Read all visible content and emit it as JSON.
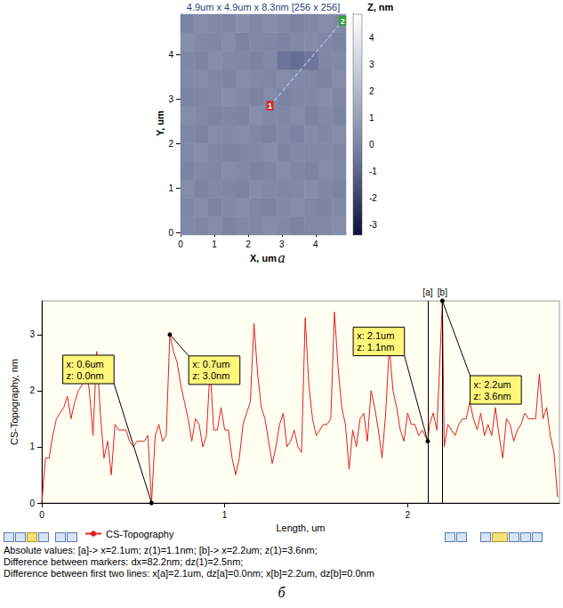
{
  "chart_data": [
    {
      "type": "heatmap",
      "title": "4.9um x 4.9um x 8.3nm [256 x 256]",
      "x_label": "X, um",
      "y_label": "Y, um",
      "colorbar_label": "Z, nm",
      "caption": "а",
      "xlim": [
        0,
        4.9
      ],
      "ylim": [
        0,
        4.9
      ],
      "xticks": [
        0,
        1,
        2,
        3,
        4
      ],
      "yticks": [
        0,
        1,
        2,
        3,
        4
      ],
      "zlim": [
        -3.4,
        4.9
      ],
      "zticks": [
        -3,
        -2,
        -1,
        0,
        1,
        2,
        3,
        4
      ],
      "cells": [
        [
          0.2,
          0.1,
          0.3,
          0.0,
          0.2,
          0.1,
          0.3,
          0.2,
          0.0,
          0.1,
          0.2,
          0.3
        ],
        [
          0.1,
          0.3,
          0.0,
          0.2,
          0.4,
          0.1,
          0.0,
          0.2,
          0.3,
          0.1,
          0.0,
          0.2
        ],
        [
          0.3,
          0.0,
          0.2,
          0.1,
          0.0,
          0.3,
          0.2,
          0.1,
          0.2,
          0.4,
          0.1,
          0.0
        ],
        [
          0.0,
          0.2,
          0.1,
          0.3,
          0.2,
          0.0,
          0.1,
          0.3,
          0.1,
          0.0,
          0.3,
          0.2
        ],
        [
          0.2,
          0.4,
          0.1,
          0.0,
          0.1,
          0.2,
          0.4,
          0.0,
          0.2,
          0.1,
          0.2,
          0.1
        ],
        [
          0.1,
          0.0,
          0.3,
          0.2,
          0.3,
          0.1,
          0.0,
          0.2,
          0.0,
          0.3,
          0.1,
          0.3
        ],
        [
          0.3,
          0.2,
          0.0,
          0.1,
          0.0,
          0.4,
          0.2,
          0.1,
          0.3,
          0.0,
          0.2,
          0.0
        ],
        [
          0.0,
          0.1,
          0.2,
          0.4,
          0.2,
          0.0,
          0.3,
          0.0,
          0.1,
          0.2,
          0.4,
          0.1
        ],
        [
          0.2,
          0.3,
          0.1,
          0.0,
          0.3,
          0.2,
          0.1,
          0.3,
          0.2,
          0.1,
          0.0,
          0.3
        ],
        [
          0.1,
          0.0,
          0.4,
          0.2,
          0.1,
          0.0,
          0.2,
          -0.6,
          -0.8,
          -0.5,
          0.1,
          0.2
        ],
        [
          0.4,
          0.2,
          0.1,
          0.3,
          0.0,
          0.2,
          0.1,
          0.0,
          0.2,
          0.3,
          0.1,
          0.0
        ],
        [
          0.0,
          0.3,
          0.2,
          0.1,
          0.4,
          0.1,
          0.3,
          0.2,
          0.0,
          0.1,
          0.3,
          0.2
        ]
      ],
      "profile_line": {
        "x": [
          2.65,
          4.8
        ],
        "y": [
          2.85,
          4.75
        ],
        "labels": [
          "1",
          "2"
        ],
        "colors": [
          "#d03030",
          "#30a030"
        ],
        "line_style": "dashed",
        "marker": "square"
      }
    },
    {
      "type": "line",
      "x_label": "Length, um",
      "y_label": "CS-Topography, nm",
      "caption": "б",
      "xlim": [
        0,
        2.83
      ],
      "ylim": [
        0,
        3.6
      ],
      "xticks": [
        0,
        1,
        2
      ],
      "yticks": [
        0,
        1,
        2,
        3
      ],
      "grid": false,
      "legend": "bottom",
      "x": [
        0,
        0.02,
        0.04,
        0.06,
        0.08,
        0.1,
        0.12,
        0.14,
        0.16,
        0.18,
        0.2,
        0.22,
        0.24,
        0.26,
        0.28,
        0.3,
        0.32,
        0.34,
        0.36,
        0.38,
        0.4,
        0.42,
        0.44,
        0.46,
        0.48,
        0.5,
        0.52,
        0.54,
        0.56,
        0.58,
        0.6,
        0.62,
        0.64,
        0.66,
        0.68,
        0.7,
        0.72,
        0.74,
        0.76,
        0.78,
        0.8,
        0.82,
        0.84,
        0.86,
        0.88,
        0.9,
        0.92,
        0.94,
        0.96,
        0.98,
        1.0,
        1.02,
        1.04,
        1.06,
        1.08,
        1.1,
        1.12,
        1.14,
        1.16,
        1.18,
        1.2,
        1.22,
        1.24,
        1.26,
        1.28,
        1.3,
        1.32,
        1.34,
        1.36,
        1.38,
        1.4,
        1.42,
        1.44,
        1.46,
        1.48,
        1.5,
        1.52,
        1.54,
        1.56,
        1.58,
        1.6,
        1.62,
        1.64,
        1.66,
        1.68,
        1.7,
        1.72,
        1.74,
        1.76,
        1.78,
        1.8,
        1.82,
        1.84,
        1.86,
        1.88,
        1.9,
        1.92,
        1.94,
        1.96,
        1.98,
        2.0,
        2.02,
        2.04,
        2.06,
        2.08,
        2.11,
        2.12,
        2.14,
        2.16,
        2.19,
        2.2,
        2.22,
        2.24,
        2.26,
        2.28,
        2.3,
        2.32,
        2.34,
        2.36,
        2.38,
        2.4,
        2.42,
        2.44,
        2.46,
        2.48,
        2.5,
        2.52,
        2.54,
        2.56,
        2.58,
        2.6,
        2.62,
        2.64,
        2.66,
        2.68,
        2.7,
        2.72,
        2.74,
        2.76,
        2.78,
        2.8,
        2.82
      ],
      "series": [
        {
          "name": "CS-Topography",
          "color": "#e02020",
          "values": [
            0.0,
            0.8,
            0.8,
            1.2,
            1.5,
            1.6,
            1.7,
            1.9,
            1.5,
            1.8,
            2.0,
            2.1,
            2.4,
            2.0,
            1.2,
            2.7,
            1.6,
            0.8,
            1.1,
            0.5,
            1.4,
            1.3,
            1.3,
            1.3,
            1.1,
            1.0,
            1.1,
            1.1,
            1.1,
            1.2,
            0.0,
            1.2,
            1.4,
            1.1,
            1.2,
            3.0,
            2.7,
            2.5,
            2.1,
            1.8,
            1.5,
            1.1,
            1.5,
            1.4,
            1.0,
            1.2,
            2.4,
            1.3,
            1.3,
            1.7,
            1.3,
            1.3,
            0.8,
            0.5,
            0.8,
            1.4,
            1.6,
            1.8,
            3.2,
            2.3,
            1.7,
            1.5,
            1.1,
            0.7,
            1.0,
            1.4,
            1.6,
            1.0,
            1.1,
            1.3,
            1.0,
            0.9,
            3.3,
            2.1,
            1.5,
            1.2,
            1.3,
            1.4,
            1.4,
            1.5,
            3.4,
            2.4,
            1.7,
            1.4,
            0.6,
            1.3,
            1.0,
            1.5,
            1.6,
            1.1,
            2.0,
            1.7,
            1.3,
            0.8,
            1.6,
            2.8,
            2.0,
            1.7,
            1.3,
            1.1,
            1.6,
            1.4,
            1.4,
            1.2,
            1.3,
            1.1,
            1.4,
            1.6,
            1.3,
            3.6,
            1.0,
            1.4,
            1.3,
            1.2,
            1.4,
            1.5,
            1.5,
            1.8,
            1.5,
            1.3,
            1.6,
            1.2,
            1.4,
            1.2,
            1.7,
            1.2,
            0.8,
            1.5,
            1.4,
            1.1,
            1.3,
            1.4,
            1.6,
            1.5,
            1.5,
            1.5,
            2.3,
            1.5,
            1.7,
            1.2,
            0.9,
            0.1
          ]
        }
      ],
      "markers": [
        {
          "x": 2.11,
          "label": "[a]"
        },
        {
          "x": 2.19,
          "label": "[b]"
        }
      ],
      "annotations": [
        {
          "x": 0.6,
          "y": 0.0,
          "text": [
            "x: 0.6um",
            "z: 0.0nm"
          ]
        },
        {
          "x": 0.7,
          "y": 3.0,
          "text": [
            "x: 0.7um",
            "z: 3.0nm"
          ]
        },
        {
          "x": 2.11,
          "y": 1.1,
          "text": [
            "x: 2.1um",
            "z: 1.1nm"
          ]
        },
        {
          "x": 2.19,
          "y": 3.6,
          "text": [
            "x: 2.2um",
            "z: 3.6nm"
          ]
        }
      ],
      "footer": [
        "Absolute values: [a]-> x=2.1um;  z(1)=1.1nm;   [b]-> x=2.2um;  z(1)=3.6nm;",
        "Difference between markers: dx=82.2nm; dz(1)=2.5nm;",
        "Difference between first two lines: x[a]=2.1um, dz[a]=0.0nm;  x[b]=2.2um, dz[b]=0.0nm"
      ]
    }
  ]
}
